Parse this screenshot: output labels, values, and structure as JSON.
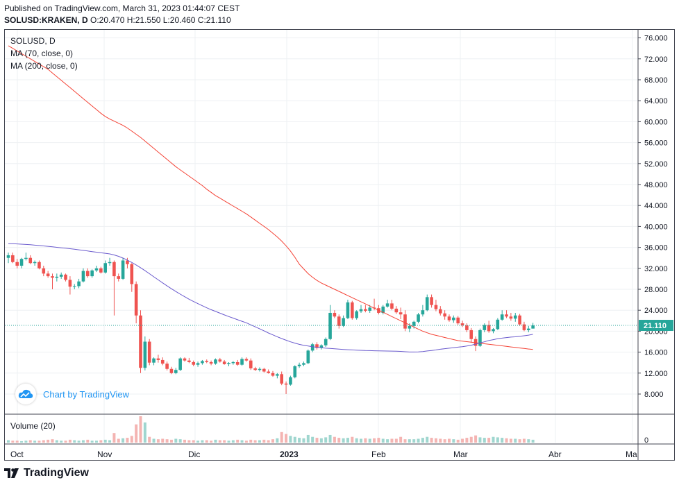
{
  "header": {
    "published": "Published on TradingView.com, March 31, 2023 01:44:07 CEST",
    "symbol_line": "SOLUSD:KRAKEN, D",
    "ohlc": "O:20.470 H:21.550 L:20.460 C:21.110"
  },
  "legend": {
    "symbol": "SOLUSD, D",
    "ma70": "MA (70, close, 0)",
    "ma200": "MA (200, close, 0)",
    "volume": "Volume (20)"
  },
  "watermark": {
    "text": "Chart by TradingView"
  },
  "brand": {
    "text": "TradingView"
  },
  "colors": {
    "up": "#26a69a",
    "down": "#ef5350",
    "ma70": "#6a5acd",
    "ma200": "#f44336",
    "last": "#26a69a"
  },
  "chart_data": {
    "type": "candlestick",
    "y_ticks": [
      "8.000",
      "12.000",
      "16.000",
      "20.000",
      "24.000",
      "28.000",
      "32.000",
      "36.000",
      "40.000",
      "44.000",
      "48.000",
      "52.000",
      "56.000",
      "60.000",
      "64.000",
      "68.000",
      "72.000",
      "76.000"
    ],
    "x_ticks": [
      "Oct",
      "Nov",
      "Dic",
      "2023",
      "Feb",
      "Mar",
      "Abr",
      "Ma"
    ],
    "ylim": [
      5,
      77
    ],
    "last_price": "21.110",
    "volume_tick": "0",
    "candles": [
      [
        34,
        35,
        33,
        34.5
      ],
      [
        34.5,
        35,
        33,
        33.2
      ],
      [
        33.2,
        33.8,
        32,
        32.5
      ],
      [
        32.5,
        34,
        32,
        33.8
      ],
      [
        33.8,
        35,
        33.5,
        34
      ],
      [
        34,
        34.5,
        32.8,
        33
      ],
      [
        33,
        33.5,
        32.5,
        33.2
      ],
      [
        33.2,
        33.5,
        31.8,
        32
      ],
      [
        32,
        32.5,
        30.5,
        31
      ],
      [
        31,
        31.5,
        30.2,
        30.5
      ],
      [
        30.5,
        31,
        28,
        30.2
      ],
      [
        30.2,
        31,
        29.5,
        30.4
      ],
      [
        30.4,
        31.2,
        30,
        30.8
      ],
      [
        30.8,
        31,
        29.5,
        29.8
      ],
      [
        29.8,
        30.5,
        27,
        28.5
      ],
      [
        28.5,
        29,
        28,
        28.6
      ],
      [
        28.6,
        30,
        28.2,
        29.5
      ],
      [
        29.5,
        32,
        29.3,
        31.5
      ],
      [
        31.5,
        32,
        30.2,
        30.5
      ],
      [
        30.5,
        31.8,
        30.2,
        31.6
      ],
      [
        31.6,
        32.5,
        31.3,
        32
      ],
      [
        32,
        32.3,
        31,
        31.2
      ],
      [
        31.2,
        33.5,
        31,
        33
      ],
      [
        33,
        34,
        32.5,
        33.2
      ],
      [
        33.2,
        33.5,
        23,
        30.5
      ],
      [
        30.5,
        31,
        29.5,
        30
      ],
      [
        30,
        34,
        29.8,
        33.5
      ],
      [
        33.5,
        34,
        32,
        32.8
      ],
      [
        32.8,
        33,
        27.5,
        29
      ],
      [
        29,
        29.5,
        21.5,
        23
      ],
      [
        23,
        24,
        12,
        13
      ],
      [
        13,
        19,
        12.5,
        18
      ],
      [
        18,
        18.5,
        13.5,
        14
      ],
      [
        14,
        15,
        13.5,
        14.8
      ],
      [
        14.8,
        15.5,
        14,
        14.5
      ],
      [
        14.5,
        15,
        13.5,
        13.8
      ],
      [
        13.8,
        14.2,
        12.5,
        12.8
      ],
      [
        12.8,
        13.2,
        11.8,
        12
      ],
      [
        12,
        13,
        11.8,
        12.6
      ],
      [
        12.6,
        15,
        12.4,
        14.8
      ],
      [
        14.8,
        15,
        14.2,
        14.4
      ],
      [
        14.4,
        14.9,
        13.9,
        14.1
      ],
      [
        14.1,
        14.4,
        13.3,
        13.6
      ],
      [
        13.6,
        14.2,
        13.2,
        13.9
      ],
      [
        13.9,
        14.5,
        13.6,
        14.3
      ],
      [
        14.3,
        14.6,
        13.9,
        14.1
      ],
      [
        14.1,
        14.4,
        13.5,
        13.8
      ],
      [
        13.8,
        14.8,
        13.6,
        14.6
      ],
      [
        14.6,
        14.9,
        14,
        14.2
      ],
      [
        14.2,
        14.5,
        13.6,
        13.7
      ],
      [
        13.7,
        14.1,
        13.3,
        13.9
      ],
      [
        13.9,
        14.3,
        13.6,
        14.1
      ],
      [
        14.1,
        14.5,
        13.4,
        13.6
      ],
      [
        13.6,
        15,
        13.4,
        14.7
      ],
      [
        14.7,
        15,
        14.2,
        14.4
      ],
      [
        14.4,
        14.8,
        12.6,
        12.9
      ],
      [
        12.9,
        13.2,
        12.4,
        12.6
      ],
      [
        12.6,
        13.1,
        12.3,
        12.8
      ],
      [
        12.8,
        13,
        12.1,
        12.3
      ],
      [
        12.3,
        12.7,
        11.9,
        12
      ],
      [
        12,
        12.4,
        11.3,
        11.5
      ],
      [
        11.5,
        12,
        11,
        11.8
      ],
      [
        11.8,
        12.3,
        9.7,
        10
      ],
      [
        10,
        10.4,
        8,
        9.8
      ],
      [
        9.8,
        11.5,
        9.6,
        11.2
      ],
      [
        11.2,
        13.5,
        11,
        13.3
      ],
      [
        13.3,
        14,
        13,
        13.6
      ],
      [
        13.6,
        14.2,
        13.3,
        13.9
      ],
      [
        13.9,
        16.5,
        13.7,
        16.3
      ],
      [
        16.3,
        17.8,
        16,
        17.5
      ],
      [
        17.5,
        17.9,
        16.5,
        16.8
      ],
      [
        16.8,
        17.5,
        16.5,
        17.3
      ],
      [
        17.3,
        18.8,
        17,
        18.5
      ],
      [
        18.5,
        25,
        18.3,
        23.5
      ],
      [
        23.5,
        24,
        22.5,
        22.8
      ],
      [
        22.8,
        23.2,
        20.5,
        21
      ],
      [
        21,
        23,
        20.8,
        22.5
      ],
      [
        22.5,
        26,
        22.3,
        25.5
      ],
      [
        25.5,
        25.8,
        22.2,
        22.5
      ],
      [
        22.5,
        24,
        22.2,
        23.8
      ],
      [
        23.8,
        25,
        23.5,
        24.2
      ],
      [
        24.2,
        25,
        23.6,
        23.9
      ],
      [
        23.9,
        25,
        23.5,
        24.5
      ],
      [
        24.5,
        26.2,
        24,
        24.4
      ],
      [
        24.4,
        25,
        23.2,
        23.5
      ],
      [
        23.5,
        25,
        23.2,
        24.7
      ],
      [
        24.7,
        26,
        24.5,
        25.3
      ],
      [
        25.3,
        26,
        24,
        24.3
      ],
      [
        24.3,
        24.8,
        23.3,
        23.6
      ],
      [
        23.6,
        24.5,
        22.3,
        23.2
      ],
      [
        23.2,
        24,
        20,
        20.5
      ],
      [
        20.5,
        21.5,
        19.8,
        21
      ],
      [
        21,
        22,
        20.5,
        21.8
      ],
      [
        21.8,
        23.5,
        21.5,
        23.2
      ],
      [
        23.2,
        25,
        22.8,
        24
      ],
      [
        24,
        27,
        23.8,
        26.5
      ],
      [
        26.5,
        27,
        24.5,
        25
      ],
      [
        25,
        26,
        23.8,
        24.2
      ],
      [
        24.2,
        24.8,
        23,
        23.4
      ],
      [
        23.4,
        24,
        22.2,
        22.8
      ],
      [
        22.8,
        23.2,
        21.8,
        22.1
      ],
      [
        22.1,
        23,
        21.6,
        22.6
      ],
      [
        22.6,
        22.9,
        21.2,
        21.5
      ],
      [
        21.5,
        22,
        20.8,
        21.1
      ],
      [
        21.1,
        21.5,
        19.8,
        20.2
      ],
      [
        20.2,
        20.6,
        17.8,
        18.5
      ],
      [
        18.5,
        19,
        16.2,
        17.2
      ],
      [
        17.2,
        20.5,
        17,
        20.2
      ],
      [
        20.2,
        21.5,
        19.8,
        21.2
      ],
      [
        21.2,
        22,
        19.7,
        20
      ],
      [
        20,
        20.6,
        19.6,
        20.4
      ],
      [
        20.4,
        22.5,
        20.2,
        22.2
      ],
      [
        22.2,
        24,
        22,
        23.2
      ],
      [
        23.2,
        24,
        22.5,
        22.8
      ],
      [
        22.8,
        23.5,
        22,
        22.4
      ],
      [
        22.4,
        23.5,
        21.8,
        23
      ],
      [
        23,
        23.3,
        21,
        21.3
      ],
      [
        21.3,
        21.8,
        20,
        20.2
      ],
      [
        20.2,
        21,
        19.8,
        20.5
      ],
      [
        20.5,
        21.6,
        20.5,
        21.1
      ]
    ],
    "volume": [
      5,
      4,
      4,
      3,
      4,
      5,
      4,
      4,
      5,
      6,
      7,
      5,
      4,
      4,
      6,
      5,
      4,
      5,
      6,
      4,
      4,
      5,
      6,
      5,
      20,
      8,
      9,
      10,
      14,
      38,
      55,
      42,
      12,
      8,
      7,
      8,
      7,
      6,
      8,
      7,
      6,
      5,
      5,
      4,
      5,
      5,
      4,
      6,
      5,
      5,
      4,
      5,
      6,
      5,
      4,
      6,
      5,
      5,
      6,
      5,
      7,
      9,
      22,
      18,
      14,
      12,
      10,
      9,
      16,
      12,
      10,
      9,
      11,
      16,
      12,
      10,
      9,
      10,
      12,
      9,
      8,
      9,
      8,
      9,
      10,
      8,
      7,
      8,
      8,
      12,
      7,
      7,
      7,
      8,
      10,
      12,
      10,
      9,
      8,
      7,
      8,
      7,
      6,
      8,
      10,
      12,
      15,
      11,
      10,
      10,
      12,
      11,
      10,
      9,
      8,
      8,
      7,
      8,
      7,
      6
    ],
    "ma70": [
      36.7,
      36.7,
      36.66,
      36.61,
      36.56,
      36.5,
      36.43,
      36.36,
      36.28,
      36.2,
      36.11,
      36.01,
      35.92,
      35.84,
      35.75,
      35.65,
      35.54,
      35.43,
      35.31,
      35.19,
      35.08,
      34.97,
      34.87,
      34.76,
      34.56,
      34.29,
      33.96,
      33.57,
      33.13,
      32.65,
      32.12,
      31.56,
      30.98,
      30.39,
      29.8,
      29.22,
      28.65,
      28.11,
      27.58,
      27.07,
      26.58,
      26.11,
      25.67,
      25.26,
      24.86,
      24.47,
      24.11,
      23.77,
      23.44,
      23.11,
      22.8,
      22.5,
      22.18,
      21.9,
      21.6,
      21.2,
      20.84,
      20.46,
      20.06,
      19.66,
      19.3,
      18.94,
      18.59,
      18.28,
      17.98,
      17.72,
      17.49,
      17.3,
      17.17,
      17.05,
      16.93,
      16.83,
      16.76,
      16.71,
      16.63,
      16.57,
      16.52,
      16.46,
      16.43,
      16.38,
      16.35,
      16.3,
      16.29,
      16.27,
      16.24,
      16.23,
      16.21,
      16.2,
      16.19,
      16.14,
      16.08,
      16.03,
      16.03,
      16.05,
      16.12,
      16.22,
      16.32,
      16.43,
      16.55,
      16.66,
      16.75,
      16.85,
      16.95,
      17.03,
      17.16,
      17.32,
      17.53,
      17.77,
      17.98,
      18.22,
      18.39,
      18.55,
      18.67,
      18.78,
      18.87,
      18.93,
      19.02,
      19.13,
      19.25,
      19.4
    ],
    "ma200": [
      74.5,
      74,
      73.5,
      73,
      72.5,
      72,
      71.5,
      71,
      70.5,
      70,
      69.3,
      68.6,
      67.9,
      67.2,
      66.5,
      65.8,
      65.1,
      64.4,
      63.7,
      63,
      62.3,
      61.6,
      61,
      60.5,
      60.1,
      59.7,
      59.3,
      58.8,
      58.2,
      57.6,
      57,
      56.3,
      55.6,
      54.9,
      54.2,
      53.5,
      52.8,
      52.1,
      51.4,
      50.8,
      50.2,
      49.6,
      49,
      48.4,
      47.8,
      47.1,
      46.5,
      45.9,
      45.4,
      44.9,
      44.4,
      43.9,
      43.4,
      42.9,
      42.4,
      41.8,
      41.2,
      40.6,
      40,
      39.4,
      38.7,
      38,
      37.2,
      36.3,
      35.3,
      34.1,
      32.8,
      31.9,
      31,
      30.3,
      29.7,
      29.2,
      28.8,
      28.4,
      28,
      27.6,
      27.2,
      26.8,
      26.4,
      26,
      25.6,
      25.2,
      24.8,
      24.4,
      24,
      23.6,
      23.2,
      22.8,
      22.4,
      22,
      21.6,
      21.2,
      20.8,
      20.4,
      20,
      19.7,
      19.4,
      19.2,
      19,
      18.8,
      18.6,
      18.4,
      18.2,
      18.1,
      18,
      17.9,
      17.8,
      17.7,
      17.6,
      17.5,
      17.4,
      17.3,
      17.2,
      17.1,
      17.0,
      16.9,
      16.8,
      16.7,
      16.6,
      16.5
    ]
  }
}
